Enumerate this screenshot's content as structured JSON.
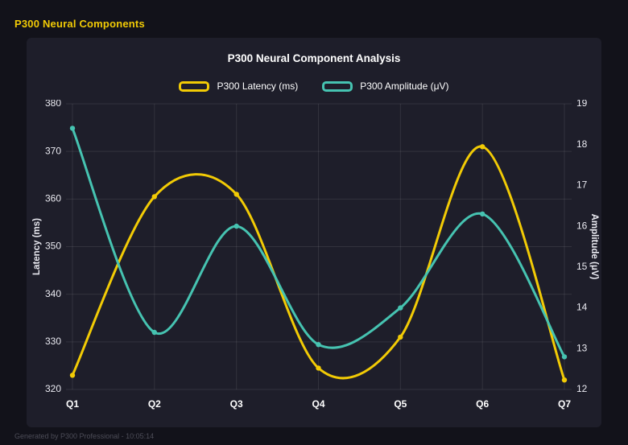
{
  "page": {
    "title": "P300 Neural Components",
    "footer": "Generated by P300 Professional - 10:05:14",
    "accent_color": "#f2cb05",
    "background_color": "#12121a",
    "card_color": "#1e1e2a"
  },
  "chart_data": {
    "type": "line",
    "title": "P300 Neural Component Analysis",
    "categories": [
      "Q1",
      "Q2",
      "Q3",
      "Q4",
      "Q5",
      "Q6",
      "Q7"
    ],
    "series": [
      {
        "name": "P300 Latency (ms)",
        "axis": "left",
        "color": "#f2cb05",
        "values": [
          323,
          360.5,
          361,
          324.5,
          331,
          371,
          322
        ]
      },
      {
        "name": "P300 Amplitude (μV)",
        "axis": "right",
        "color": "#46c3b1",
        "values": [
          18.4,
          13.4,
          16.0,
          13.1,
          14.0,
          16.3,
          12.8
        ]
      }
    ],
    "axes": {
      "left": {
        "label": "Latency (ms)",
        "range": [
          320,
          380
        ],
        "ticks": [
          320,
          330,
          340,
          350,
          360,
          370,
          380
        ]
      },
      "right": {
        "label": "Amplitude (μV)",
        "range": [
          12,
          19
        ],
        "ticks": [
          12,
          13,
          14,
          15,
          16,
          17,
          18,
          19
        ]
      }
    },
    "grid": true,
    "legend_position": "top",
    "line_tension": 0.32
  }
}
